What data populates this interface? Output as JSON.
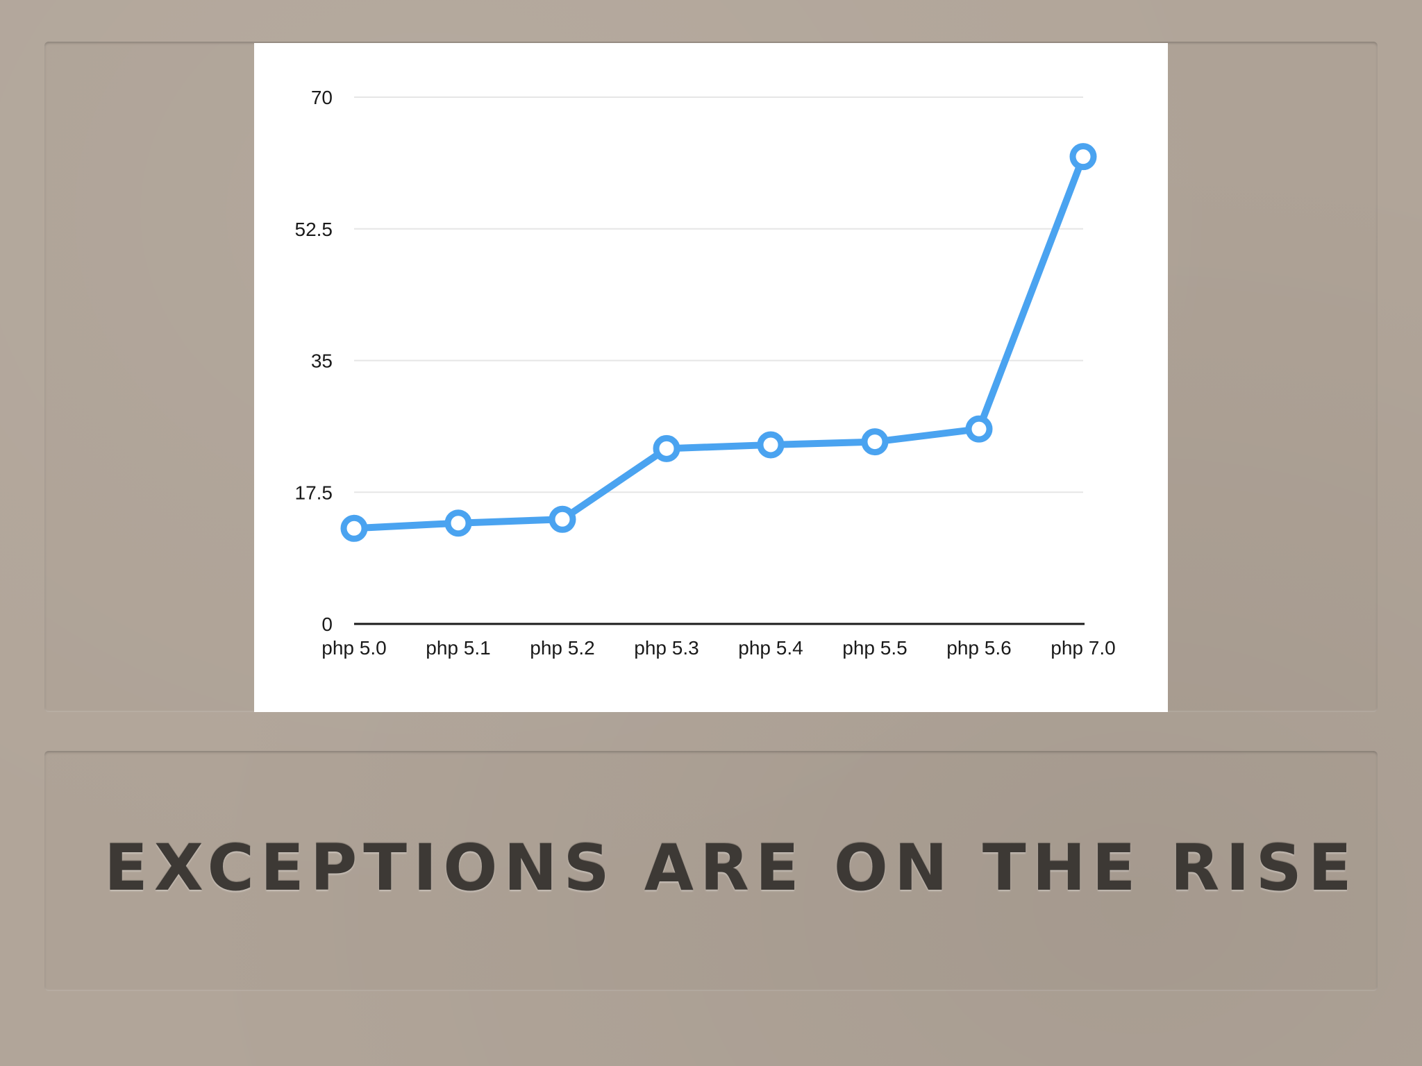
{
  "slide": {
    "title": "EXCEPTIONS ARE ON THE RISE"
  },
  "colors": {
    "background": "#b1a599",
    "line": "#4aa3f0",
    "title": "#3d3935",
    "grid": "#e6e6e6"
  },
  "chart_data": {
    "type": "line",
    "title": "",
    "xlabel": "",
    "ylabel": "",
    "categories": [
      "php 5.0",
      "php 5.1",
      "php 5.2",
      "php 5.3",
      "php 5.4",
      "php 5.5",
      "php 5.6",
      "php 7.0"
    ],
    "series": [
      {
        "values": [
          12.7,
          13.4,
          13.9,
          23.3,
          23.8,
          24.2,
          25.9,
          62.1
        ]
      }
    ],
    "ylim": [
      0,
      70
    ],
    "yticks": [
      "0",
      "17.5",
      "35",
      "52.5",
      "70"
    ],
    "grid": true,
    "legend": "none"
  }
}
